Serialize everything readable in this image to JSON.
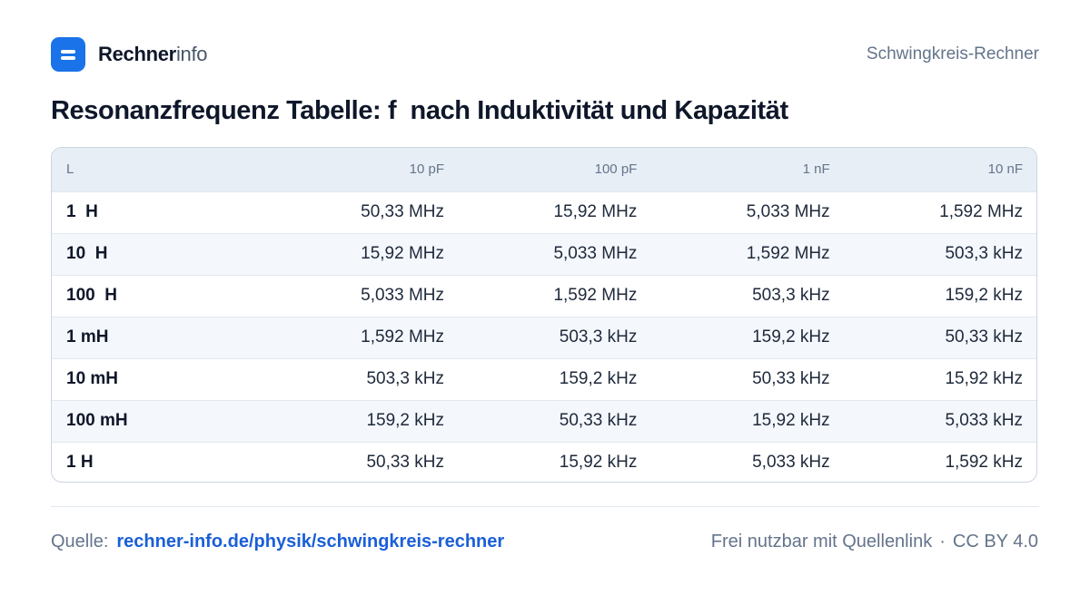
{
  "brand": {
    "bold": "Rechner",
    "light": "info"
  },
  "header": {
    "page_label": "Schwingkreis-Rechner"
  },
  "title": "Resonanzfrequenz Tabelle: f  nach Induktivität und Kapazität",
  "table": {
    "columns": [
      "L",
      "10 pF",
      "100 pF",
      "1 nF",
      "10 nF"
    ],
    "rows": [
      {
        "label": "1  H",
        "values": [
          "50,33 MHz",
          "15,92 MHz",
          "5,033 MHz",
          "1,592 MHz"
        ]
      },
      {
        "label": "10  H",
        "values": [
          "15,92 MHz",
          "5,033 MHz",
          "1,592 MHz",
          "503,3 kHz"
        ]
      },
      {
        "label": "100  H",
        "values": [
          "5,033 MHz",
          "1,592 MHz",
          "503,3 kHz",
          "159,2 kHz"
        ]
      },
      {
        "label": "1 mH",
        "values": [
          "1,592 MHz",
          "503,3 kHz",
          "159,2 kHz",
          "50,33 kHz"
        ]
      },
      {
        "label": "10 mH",
        "values": [
          "503,3 kHz",
          "159,2 kHz",
          "50,33 kHz",
          "15,92 kHz"
        ]
      },
      {
        "label": "100 mH",
        "values": [
          "159,2 kHz",
          "50,33 kHz",
          "15,92 kHz",
          "5,033 kHz"
        ]
      },
      {
        "label": "1 H",
        "values": [
          "50,33 kHz",
          "15,92 kHz",
          "5,033 kHz",
          "1,592 kHz"
        ]
      }
    ]
  },
  "footer": {
    "source_label": "Quelle:",
    "source_link": "rechner-info.de/physik/schwingkreis-rechner",
    "license_text": "Frei nutzbar mit Quellenlink",
    "separator": "·",
    "license": "CC BY 4.0"
  },
  "colors": {
    "accent": "#1a73e8",
    "link": "#1a5fd8",
    "header_bg": "#e8eef6",
    "zebra": "#f4f7fb"
  },
  "icons": {
    "logo": "equals-bars-icon"
  }
}
